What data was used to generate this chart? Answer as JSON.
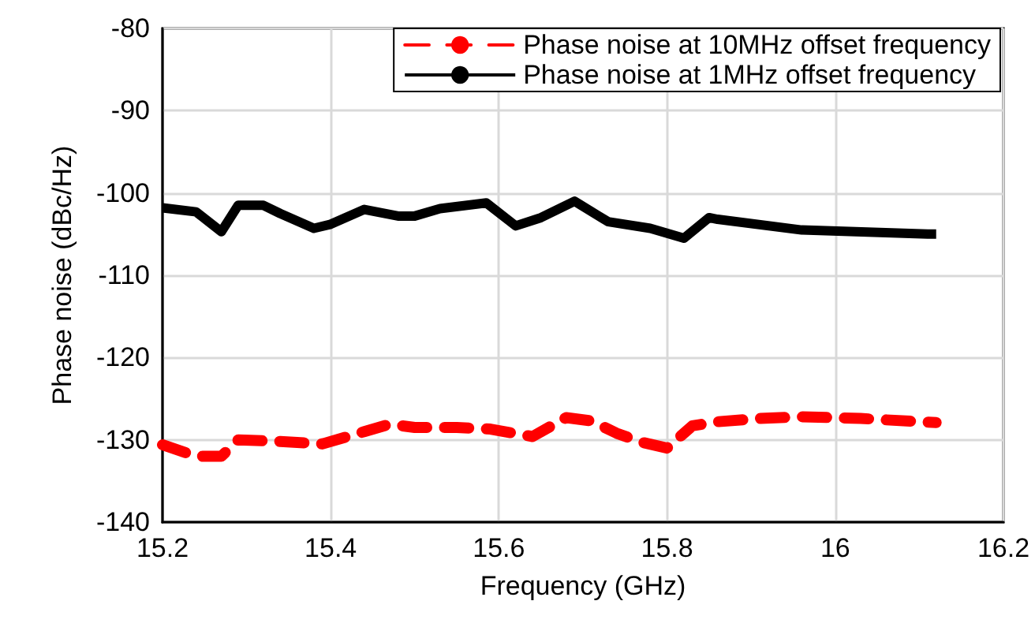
{
  "chart_data": {
    "type": "line",
    "xlabel": "Frequency (GHz)",
    "ylabel": "Phase noise (dBc/Hz)",
    "xlim": [
      15.2,
      16.2
    ],
    "xticks": [
      15.2,
      15.4,
      15.6,
      15.8,
      16,
      16.2
    ],
    "ylim": [
      -140,
      -80
    ],
    "yticks": [
      -140,
      -130,
      -120,
      -110,
      -100,
      -90,
      -80
    ],
    "grid": true,
    "legend": "top right",
    "marker": "none",
    "series": [
      {
        "name": "Phase noise at 10MHz offset frequency",
        "color": "#ff0000",
        "line_style": "dashed",
        "x": [
          15.2,
          15.24,
          15.27,
          15.29,
          15.34,
          15.39,
          15.44,
          15.47,
          15.5,
          15.55,
          15.59,
          15.64,
          15.68,
          15.71,
          15.74,
          15.77,
          15.8,
          15.83,
          15.86,
          15.91,
          15.96,
          16.03,
          16.1,
          16.12
        ],
        "values": [
          -130.6,
          -132,
          -132,
          -130,
          -130.2,
          -130.5,
          -129,
          -128.1,
          -128.5,
          -128.5,
          -128.7,
          -129.6,
          -127.3,
          -127.7,
          -129.2,
          -130.3,
          -131,
          -128.3,
          -127.8,
          -127.4,
          -127.2,
          -127.4,
          -127.8,
          -127.9
        ]
      },
      {
        "name": "Phase noise at 1MHz offset frequency",
        "color": "#000000",
        "line_style": "solid",
        "x": [
          15.2,
          15.24,
          15.27,
          15.29,
          15.32,
          15.34,
          15.38,
          15.4,
          15.44,
          15.48,
          15.5,
          15.53,
          15.585,
          15.62,
          15.65,
          15.69,
          15.73,
          15.78,
          15.82,
          15.85,
          15.86,
          15.96,
          16.11,
          16.12
        ],
        "values": [
          -101.8,
          -102.3,
          -104.7,
          -101.5,
          -101.5,
          -102.5,
          -104.3,
          -103.8,
          -102,
          -102.8,
          -102.8,
          -101.9,
          -101.2,
          -104,
          -103,
          -101,
          -103.5,
          -104.3,
          -105.5,
          -103,
          -103.2,
          -104.5,
          -105,
          -105
        ]
      }
    ]
  }
}
